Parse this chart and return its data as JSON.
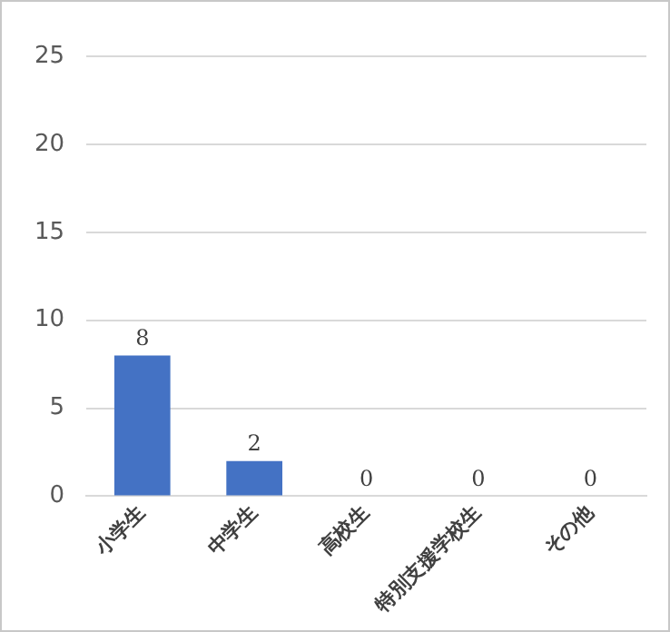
{
  "chart_data": {
    "type": "bar",
    "categories": [
      "小学生",
      "中学生",
      "高校生",
      "特別支援学校生",
      "その他"
    ],
    "values": [
      8,
      2,
      0,
      0,
      0
    ],
    "color": "#4472c4",
    "ylim": [
      0,
      25
    ],
    "yticks": [
      0,
      5,
      10,
      15,
      20,
      25
    ],
    "grid": "y",
    "data_labels": true,
    "legend": false
  }
}
